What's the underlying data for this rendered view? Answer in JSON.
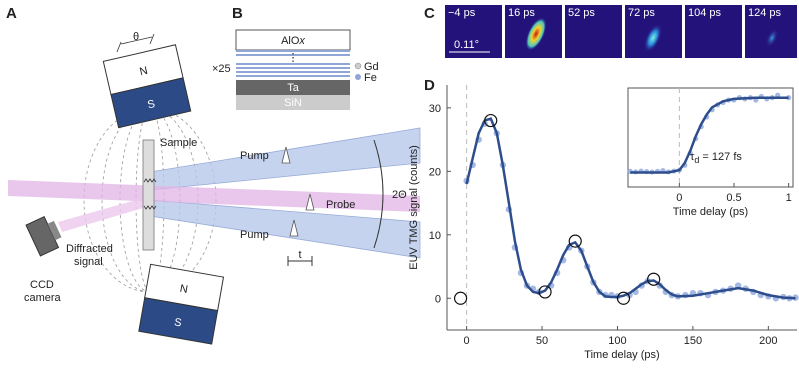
{
  "panel_labels": [
    "A",
    "B",
    "C",
    "D"
  ],
  "schematic": {
    "theta": "θ",
    "magnet_top": {
      "north": "N",
      "south": "S"
    },
    "magnet_bottom": {
      "north": "N",
      "south": "S"
    },
    "sample": "Sample",
    "pump_top": "Pump",
    "pump_bottom": "Pump",
    "probe": "Probe",
    "angle": "2Θ",
    "delay": "t",
    "diffracted": [
      "Diffracted",
      "signal"
    ],
    "camera": [
      "CCD",
      "camera"
    ]
  },
  "multilayer": {
    "cap": "AlO",
    "cap_sub": "x",
    "repeat": "×25",
    "legend": [
      "Gd",
      "Fe"
    ],
    "buffer": "Ta",
    "substrate": "SiN"
  },
  "snapshots": {
    "labels": [
      "−4 ps",
      "16 ps",
      "52 ps",
      "72 ps",
      "104 ps",
      "124 ps"
    ],
    "scale": "0.11°"
  },
  "chart_data": [
    {
      "type": "scatter",
      "xlabel": "Time delay (ps)",
      "ylabel": "EUV TMG signal (counts)",
      "xlim": [
        -13,
        219
      ],
      "ylim": [
        -5,
        33.6
      ],
      "xticks": [
        0,
        50,
        100,
        150,
        200
      ],
      "yticks": [
        0,
        10,
        20,
        30
      ],
      "frame": "axes",
      "vlines": [
        0
      ],
      "series": [
        {
          "kind": "markers",
          "color": "#93acde",
          "x": [
            0,
            4,
            8,
            12,
            20,
            24,
            28,
            32,
            36,
            40,
            44,
            48,
            56,
            60,
            64,
            68,
            76,
            80,
            84,
            88,
            92,
            96,
            100,
            108,
            112,
            116,
            120,
            128,
            132,
            136,
            140,
            145,
            150,
            155,
            160,
            165,
            170,
            175,
            180,
            185,
            190,
            195,
            200,
            205,
            210,
            214,
            218
          ],
          "values": [
            18.5,
            21,
            25,
            27.5,
            26,
            21,
            14,
            8,
            4,
            2,
            1.5,
            1,
            2,
            4,
            6,
            8,
            7.5,
            5,
            2.5,
            1,
            0.5,
            0.5,
            0.3,
            0.5,
            1,
            2,
            2.7,
            2,
            1,
            0.5,
            0.3,
            0.5,
            0.8,
            0.8,
            0.5,
            1,
            1.2,
            1.5,
            2,
            1.5,
            1,
            0.5,
            0.3,
            0,
            0.2,
            0,
            0.1
          ]
        },
        {
          "kind": "line",
          "color": "#2e4d8c",
          "x": [
            0,
            4,
            8,
            12,
            16,
            20,
            24,
            28,
            32,
            36,
            40,
            44,
            48,
            52,
            56,
            60,
            64,
            68,
            72,
            76,
            80,
            84,
            88,
            92,
            96,
            100,
            104,
            108,
            112,
            116,
            120,
            124,
            128,
            132,
            136,
            140,
            150,
            160,
            170,
            180,
            190,
            200,
            210,
            218
          ],
          "values": [
            18,
            22,
            26,
            28,
            28.3,
            26,
            21,
            15,
            9,
            4.5,
            2,
            1,
            0.8,
            1.2,
            2.5,
            4.5,
            6.8,
            8.4,
            8.8,
            7.5,
            5,
            2.6,
            1,
            0.3,
            0.2,
            0.2,
            0.4,
            0.8,
            1.5,
            2.2,
            2.7,
            2.8,
            2.2,
            1.3,
            0.6,
            0.3,
            0.4,
            0.8,
            1.2,
            1.6,
            1.2,
            0.5,
            0.1,
            0
          ]
        },
        {
          "kind": "circles",
          "color": "#111111",
          "x": [
            -4,
            16,
            52,
            72,
            104,
            124
          ],
          "values": [
            0,
            28,
            1,
            9,
            0,
            3
          ]
        }
      ]
    },
    {
      "type": "scatter",
      "xlabel": "Time delay (ps)",
      "annotation": {
        "symbol": "τ",
        "subscript": "d",
        "text": " = 127 fs"
      },
      "xlim": [
        -0.47,
        1.04
      ],
      "ylim": [
        -6,
        35
      ],
      "xticks": [
        0,
        0.5,
        1
      ],
      "frame": "box",
      "vlines": [
        0
      ],
      "series": [
        {
          "kind": "markers",
          "color": "#93acde",
          "x": [
            -0.45,
            -0.4,
            -0.35,
            -0.3,
            -0.25,
            -0.2,
            -0.15,
            -0.1,
            -0.05,
            0,
            0.05,
            0.1,
            0.15,
            0.2,
            0.25,
            0.3,
            0.35,
            0.4,
            0.45,
            0.5,
            0.55,
            0.6,
            0.65,
            0.7,
            0.75,
            0.8,
            0.85,
            0.9,
            1.0
          ],
          "values": [
            0.5,
            0.3,
            0.6,
            0.4,
            0.2,
            0.5,
            0.8,
            0.3,
            0.6,
            1,
            3,
            8,
            14,
            19,
            23,
            26,
            28,
            29,
            30,
            30,
            31,
            30.5,
            31,
            30,
            31.5,
            30.5,
            31,
            32,
            31
          ]
        },
        {
          "kind": "line",
          "color": "#2e4d8c",
          "x": [
            -0.45,
            -0.1,
            0,
            0.05,
            0.1,
            0.15,
            0.2,
            0.25,
            0.3,
            0.4,
            0.5,
            0.7,
            1.0
          ],
          "values": [
            0,
            0,
            1,
            4,
            9,
            15,
            20,
            24,
            27,
            29.5,
            30.5,
            31,
            31
          ]
        }
      ]
    }
  ]
}
